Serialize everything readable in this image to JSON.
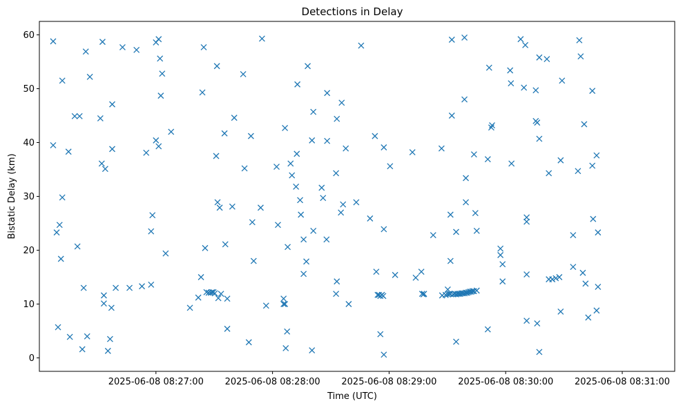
{
  "chart_data": {
    "type": "scatter",
    "title": "Detections in Delay",
    "xlabel": "Time (UTC)",
    "ylabel": "Bistatic Delay (km)",
    "xlim": [
      "2025-06-08 08:26:00",
      "2025-06-08 08:31:27"
    ],
    "ylim": [
      -2.5,
      62.5
    ],
    "xticks": [
      {
        "t": "2025-06-08 08:27:00",
        "label": "2025-06-08 08:27:00"
      },
      {
        "t": "2025-06-08 08:28:00",
        "label": "2025-06-08 08:28:00"
      },
      {
        "t": "2025-06-08 08:29:00",
        "label": "2025-06-08 08:29:00"
      },
      {
        "t": "2025-06-08 08:30:00",
        "label": "2025-06-08 08:30:00"
      },
      {
        "t": "2025-06-08 08:31:00",
        "label": "2025-06-08 08:31:00"
      }
    ],
    "yticks": [
      0,
      10,
      20,
      30,
      40,
      50,
      60
    ],
    "grid": false,
    "marker": "x",
    "color": "#1f77b4",
    "series": [
      {
        "points": [
          [
            "08:26:07.1",
            58.8
          ],
          [
            "08:26:07.1",
            39.5
          ],
          [
            "08:26:08.9",
            23.3
          ],
          [
            "08:26:09.6",
            5.7
          ],
          [
            "08:26:10.4",
            24.7
          ],
          [
            "08:26:11.1",
            18.4
          ],
          [
            "08:26:11.8",
            29.8
          ],
          [
            "08:26:11.8",
            51.5
          ],
          [
            "08:26:15.0",
            38.3
          ],
          [
            "08:26:15.7",
            3.9
          ],
          [
            "08:26:18.2",
            44.9
          ],
          [
            "08:26:19.6",
            20.7
          ],
          [
            "08:26:20.7",
            44.9
          ],
          [
            "08:26:22.1",
            1.6
          ],
          [
            "08:26:22.8",
            13.0
          ],
          [
            "08:26:23.9",
            56.9
          ],
          [
            "08:26:24.6",
            4.0
          ],
          [
            "08:26:26.0",
            52.2
          ],
          [
            "08:26:31.4",
            44.5
          ],
          [
            "08:26:32.1",
            36.1
          ],
          [
            "08:26:32.5",
            58.7
          ],
          [
            "08:26:33.2",
            11.6
          ],
          [
            "08:26:33.2",
            10.1
          ],
          [
            "08:26:33.9",
            35.1
          ],
          [
            "08:26:35.3",
            1.3
          ],
          [
            "08:26:36.4",
            3.5
          ],
          [
            "08:26:37.1",
            9.3
          ],
          [
            "08:26:37.5",
            47.1
          ],
          [
            "08:26:37.5",
            38.8
          ],
          [
            "08:26:39.3",
            13.0
          ],
          [
            "08:26:42.8",
            57.7
          ],
          [
            "08:26:46.4",
            13.0
          ],
          [
            "08:26:50.0",
            57.2
          ],
          [
            "08:26:52.8",
            13.3
          ],
          [
            "08:26:55.0",
            38.1
          ],
          [
            "08:26:57.5",
            23.5
          ],
          [
            "08:26:57.5",
            13.6
          ],
          [
            "08:26:58.2",
            26.5
          ],
          [
            "08:27:00.0",
            58.6
          ],
          [
            "08:27:00.0",
            40.4
          ],
          [
            "08:27:01.4",
            39.3
          ],
          [
            "08:27:01.4",
            59.2
          ],
          [
            "08:27:02.1",
            55.6
          ],
          [
            "08:27:02.5",
            48.7
          ],
          [
            "08:27:03.2",
            52.8
          ],
          [
            "08:27:05.0",
            19.4
          ],
          [
            "08:27:07.8",
            42.0
          ],
          [
            "08:27:17.5",
            9.3
          ],
          [
            "08:27:21.8",
            11.2
          ],
          [
            "08:27:23.2",
            15.0
          ],
          [
            "08:27:23.9",
            49.3
          ],
          [
            "08:27:24.6",
            57.7
          ],
          [
            "08:27:25.3",
            20.4
          ],
          [
            "08:27:26.0",
            12.2
          ],
          [
            "08:27:27.1",
            12.1
          ],
          [
            "08:27:28.2",
            12.1
          ],
          [
            "08:27:28.9",
            12.2
          ],
          [
            "08:27:29.6",
            12.2
          ],
          [
            "08:27:30.3",
            12.0
          ],
          [
            "08:27:31.0",
            37.5
          ],
          [
            "08:27:31.4",
            54.2
          ],
          [
            "08:27:31.7",
            28.9
          ],
          [
            "08:27:32.1",
            11.1
          ],
          [
            "08:27:32.8",
            27.9
          ],
          [
            "08:27:33.5",
            11.9
          ],
          [
            "08:27:35.3",
            41.7
          ],
          [
            "08:27:35.7",
            21.1
          ],
          [
            "08:27:36.7",
            5.4
          ],
          [
            "08:27:36.7",
            11.0
          ],
          [
            "08:27:39.3",
            28.1
          ],
          [
            "08:27:40.3",
            44.6
          ],
          [
            "08:27:44.9",
            52.7
          ],
          [
            "08:27:45.6",
            35.2
          ],
          [
            "08:27:47.8",
            2.9
          ],
          [
            "08:27:48.9",
            41.2
          ],
          [
            "08:27:49.6",
            25.2
          ],
          [
            "08:27:50.3",
            18.0
          ],
          [
            "08:27:53.9",
            27.9
          ],
          [
            "08:27:54.6",
            59.3
          ],
          [
            "08:27:56.7",
            9.7
          ],
          [
            "08:28:02.1",
            35.5
          ],
          [
            "08:28:02.8",
            24.7
          ],
          [
            "08:28:05.7",
            11.0
          ],
          [
            "08:28:05.7",
            10.0
          ],
          [
            "08:28:06.4",
            10.0
          ],
          [
            "08:28:06.4",
            42.7
          ],
          [
            "08:28:06.8",
            1.8
          ],
          [
            "08:28:07.5",
            4.9
          ],
          [
            "08:28:07.8",
            20.6
          ],
          [
            "08:28:09.3",
            36.1
          ],
          [
            "08:28:10.0",
            33.9
          ],
          [
            "08:28:12.1",
            31.8
          ],
          [
            "08:28:12.5",
            37.9
          ],
          [
            "08:28:12.8",
            50.8
          ],
          [
            "08:28:14.2",
            29.3
          ],
          [
            "08:28:14.6",
            26.6
          ],
          [
            "08:28:16.0",
            22.0
          ],
          [
            "08:28:16.0",
            15.6
          ],
          [
            "08:28:17.4",
            17.9
          ],
          [
            "08:28:18.1",
            54.2
          ],
          [
            "08:28:20.3",
            40.4
          ],
          [
            "08:28:20.3",
            1.4
          ],
          [
            "08:28:21.0",
            45.7
          ],
          [
            "08:28:21.0",
            23.6
          ],
          [
            "08:28:25.3",
            31.6
          ],
          [
            "08:28:26.0",
            29.7
          ],
          [
            "08:28:27.8",
            22.0
          ],
          [
            "08:28:28.1",
            40.3
          ],
          [
            "08:28:28.1",
            49.2
          ],
          [
            "08:28:32.7",
            34.3
          ],
          [
            "08:28:32.7",
            11.9
          ],
          [
            "08:28:33.1",
            44.4
          ],
          [
            "08:28:33.1",
            14.2
          ],
          [
            "08:28:35.2",
            27.0
          ],
          [
            "08:28:35.6",
            47.4
          ],
          [
            "08:28:36.3",
            28.5
          ],
          [
            "08:28:37.7",
            38.9
          ],
          [
            "08:28:39.2",
            10.0
          ],
          [
            "08:28:43.1",
            28.9
          ],
          [
            "08:28:45.6",
            58.0
          ],
          [
            "08:28:50.2",
            25.9
          ],
          [
            "08:28:52.7",
            41.2
          ],
          [
            "08:28:53.4",
            16.0
          ],
          [
            "08:28:54.1",
            11.7
          ],
          [
            "08:28:54.8",
            11.7
          ],
          [
            "08:28:55.5",
            4.4
          ],
          [
            "08:28:55.5",
            11.5
          ],
          [
            "08:28:56.3",
            11.7
          ],
          [
            "08:28:57.0",
            11.5
          ],
          [
            "08:28:57.3",
            39.1
          ],
          [
            "08:28:57.3",
            23.9
          ],
          [
            "08:28:57.3",
            0.6
          ],
          [
            "08:29:00.5",
            35.6
          ],
          [
            "08:29:03.1",
            15.4
          ],
          [
            "08:29:12.0",
            38.2
          ],
          [
            "08:29:13.7",
            14.9
          ],
          [
            "08:29:16.6",
            16.0
          ],
          [
            "08:29:17.0",
            11.9
          ],
          [
            "08:29:17.7",
            11.8
          ],
          [
            "08:29:18.0",
            11.9
          ],
          [
            "08:29:22.7",
            22.8
          ],
          [
            "08:29:27.0",
            38.9
          ],
          [
            "08:29:27.3",
            11.6
          ],
          [
            "08:29:29.1",
            11.7
          ],
          [
            "08:29:30.2",
            12.7
          ],
          [
            "08:29:30.2",
            11.8
          ],
          [
            "08:29:30.9",
            11.9
          ],
          [
            "08:29:31.6",
            11.9
          ],
          [
            "08:29:31.6",
            18.0
          ],
          [
            "08:29:31.6",
            26.6
          ],
          [
            "08:29:32.3",
            45.0
          ],
          [
            "08:29:32.3",
            59.1
          ],
          [
            "08:29:33.0",
            11.8
          ],
          [
            "08:29:33.8",
            11.9
          ],
          [
            "08:29:34.5",
            11.8
          ],
          [
            "08:29:34.5",
            23.4
          ],
          [
            "08:29:34.5",
            3.0
          ],
          [
            "08:29:35.2",
            11.9
          ],
          [
            "08:29:35.9",
            11.9
          ],
          [
            "08:29:36.6",
            11.9
          ],
          [
            "08:29:37.3",
            12.0
          ],
          [
            "08:29:38.0",
            12.0
          ],
          [
            "08:29:38.8",
            12.0
          ],
          [
            "08:29:38.8",
            59.5
          ],
          [
            "08:29:38.8",
            48.0
          ],
          [
            "08:29:39.5",
            12.1
          ],
          [
            "08:29:39.5",
            33.4
          ],
          [
            "08:29:39.5",
            28.9
          ],
          [
            "08:29:40.2",
            12.1
          ],
          [
            "08:29:40.9",
            12.2
          ],
          [
            "08:29:41.6",
            12.3
          ],
          [
            "08:29:42.3",
            12.3
          ],
          [
            "08:29:43.0",
            12.4
          ],
          [
            "08:29:43.7",
            37.8
          ],
          [
            "08:29:43.7",
            12.4
          ],
          [
            "08:29:44.4",
            26.9
          ],
          [
            "08:29:45.1",
            23.6
          ],
          [
            "08:29:45.1",
            12.5
          ],
          [
            "08:29:50.8",
            36.9
          ],
          [
            "08:29:50.8",
            5.3
          ],
          [
            "08:29:51.5",
            53.9
          ],
          [
            "08:29:52.6",
            42.8
          ],
          [
            "08:29:53.0",
            43.2
          ],
          [
            "08:29:57.3",
            20.3
          ],
          [
            "08:29:57.3",
            19.1
          ],
          [
            "08:29:58.4",
            17.4
          ],
          [
            "08:29:58.4",
            14.2
          ],
          [
            "08:30:02.3",
            53.4
          ],
          [
            "08:30:02.7",
            51.0
          ],
          [
            "08:30:03.0",
            36.1
          ],
          [
            "08:30:07.7",
            59.2
          ],
          [
            "08:30:09.4",
            50.2
          ],
          [
            "08:30:10.1",
            58.1
          ],
          [
            "08:30:10.8",
            26.1
          ],
          [
            "08:30:10.8",
            25.3
          ],
          [
            "08:30:10.8",
            15.5
          ],
          [
            "08:30:10.8",
            6.9
          ],
          [
            "08:30:15.5",
            49.7
          ],
          [
            "08:30:15.5",
            44.0
          ],
          [
            "08:30:16.2",
            43.7
          ],
          [
            "08:30:16.2",
            6.4
          ],
          [
            "08:30:17.3",
            55.8
          ],
          [
            "08:30:17.3",
            40.7
          ],
          [
            "08:30:17.3",
            1.1
          ],
          [
            "08:30:21.2",
            55.5
          ],
          [
            "08:30:22.2",
            34.3
          ],
          [
            "08:30:22.2",
            14.6
          ],
          [
            "08:30:24.0",
            14.6
          ],
          [
            "08:30:25.8",
            14.8
          ],
          [
            "08:30:27.6",
            15.0
          ],
          [
            "08:30:28.3",
            36.7
          ],
          [
            "08:30:28.3",
            8.6
          ],
          [
            "08:30:29.0",
            51.5
          ],
          [
            "08:30:34.7",
            22.8
          ],
          [
            "08:30:34.7",
            16.9
          ],
          [
            "08:30:37.2",
            34.7
          ],
          [
            "08:30:37.9",
            59.0
          ],
          [
            "08:30:38.6",
            56.0
          ],
          [
            "08:30:39.7",
            15.8
          ],
          [
            "08:30:40.4",
            43.4
          ],
          [
            "08:30:41.1",
            13.8
          ],
          [
            "08:30:42.5",
            7.5
          ],
          [
            "08:30:44.6",
            49.6
          ],
          [
            "08:30:44.6",
            35.7
          ],
          [
            "08:30:45.0",
            25.8
          ],
          [
            "08:30:46.8",
            37.6
          ],
          [
            "08:30:46.8",
            8.8
          ],
          [
            "08:30:47.5",
            23.3
          ],
          [
            "08:30:47.5",
            13.2
          ]
        ]
      }
    ]
  }
}
